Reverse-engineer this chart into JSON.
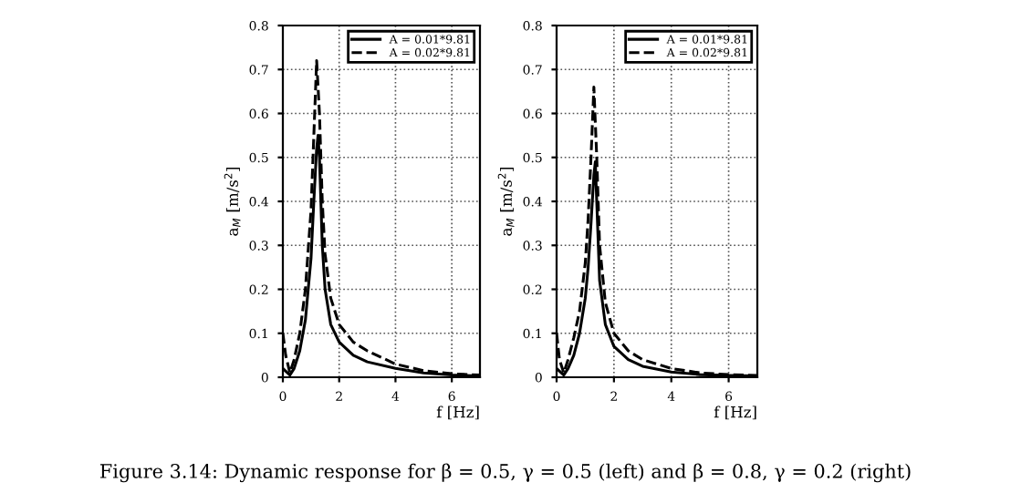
{
  "chart_data": [
    {
      "type": "line",
      "xlabel": "f [Hz]",
      "ylabel": "a$_{M}$ [m/s$^{2}$]",
      "xlim": [
        0,
        7
      ],
      "ylim": [
        0,
        0.8
      ],
      "xticks": [
        0,
        2,
        4,
        6
      ],
      "yticks": [
        0,
        0.1,
        0.2,
        0.3,
        0.4,
        0.5,
        0.6,
        0.7,
        0.8
      ],
      "grid": true,
      "legend": "top right",
      "marker": "none",
      "annotations": [
        "Figure 3.14: Dynamic response for β = 0.5, γ = 0.5 (left) and β = 0.8, γ = 0.2 (right)"
      ],
      "series": [
        {
          "name": "A = 0.01*9.81",
          "color": "#000000",
          "line_style": "solid",
          "x": [
            0,
            0.25,
            0.4,
            0.6,
            0.8,
            1.0,
            1.1,
            1.2,
            1.25,
            1.3,
            1.4,
            1.5,
            1.7,
            2.0,
            2.5,
            3,
            4,
            5,
            6,
            7
          ],
          "values": [
            0.02,
            0.005,
            0.02,
            0.06,
            0.13,
            0.27,
            0.4,
            0.52,
            0.55,
            0.5,
            0.3,
            0.2,
            0.12,
            0.08,
            0.05,
            0.035,
            0.02,
            0.01,
            0.005,
            0.003
          ]
        },
        {
          "name": "A = 0.02*9.81",
          "color": "#000000",
          "line_style": "dashed",
          "x": [
            0,
            0.1,
            0.25,
            0.4,
            0.6,
            0.8,
            1.0,
            1.1,
            1.2,
            1.3,
            1.4,
            1.5,
            1.7,
            2.0,
            2.5,
            3,
            4,
            5,
            6,
            7
          ],
          "values": [
            0.1,
            0.05,
            0.01,
            0.04,
            0.1,
            0.2,
            0.38,
            0.55,
            0.72,
            0.6,
            0.4,
            0.28,
            0.18,
            0.12,
            0.08,
            0.06,
            0.03,
            0.015,
            0.008,
            0.005
          ]
        }
      ]
    },
    {
      "type": "line",
      "xlabel": "f [Hz]",
      "ylabel": "a$_{M}$ [m/s$^{2}$]",
      "xlim": [
        0,
        7
      ],
      "ylim": [
        0,
        0.8
      ],
      "xticks": [
        0,
        2,
        4,
        6
      ],
      "yticks": [
        0,
        0.1,
        0.2,
        0.3,
        0.4,
        0.5,
        0.6,
        0.7,
        0.8
      ],
      "grid": true,
      "legend": "top right",
      "marker": "none",
      "series": [
        {
          "name": "A = 0.01*9.81",
          "color": "#000000",
          "line_style": "solid",
          "x": [
            0,
            0.25,
            0.4,
            0.6,
            0.8,
            1.0,
            1.1,
            1.2,
            1.3,
            1.35,
            1.4,
            1.5,
            1.7,
            2.0,
            2.5,
            3,
            4,
            5,
            6,
            7
          ],
          "values": [
            0.02,
            0.005,
            0.02,
            0.05,
            0.1,
            0.18,
            0.25,
            0.35,
            0.46,
            0.49,
            0.4,
            0.22,
            0.12,
            0.07,
            0.04,
            0.025,
            0.012,
            0.006,
            0.004,
            0.003
          ]
        },
        {
          "name": "A = 0.02*9.81",
          "color": "#000000",
          "line_style": "dashed",
          "x": [
            0,
            0.1,
            0.25,
            0.4,
            0.6,
            0.8,
            1.0,
            1.1,
            1.2,
            1.3,
            1.4,
            1.5,
            1.7,
            2.0,
            2.5,
            3,
            4,
            5,
            6,
            7
          ],
          "values": [
            0.1,
            0.04,
            0.01,
            0.04,
            0.09,
            0.15,
            0.26,
            0.36,
            0.5,
            0.66,
            0.5,
            0.3,
            0.17,
            0.1,
            0.06,
            0.04,
            0.02,
            0.01,
            0.006,
            0.004
          ]
        }
      ]
    }
  ]
}
